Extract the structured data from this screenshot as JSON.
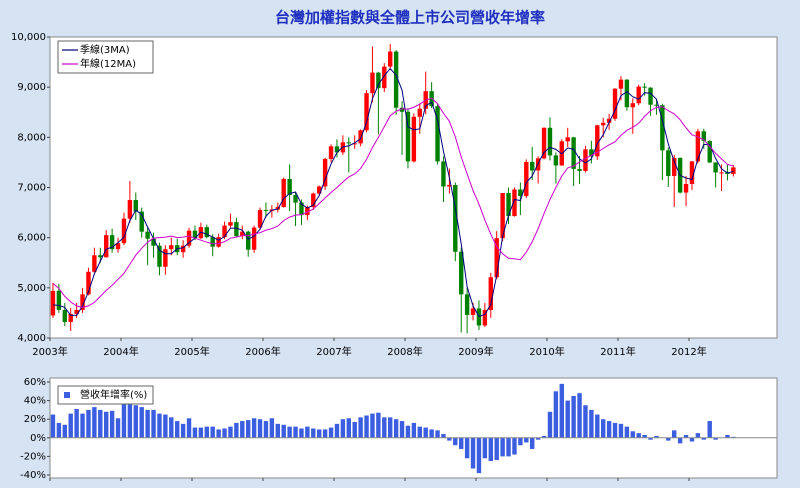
{
  "chart_data": [
    {
      "type": "candlestick",
      "title": "台灣加權指數與全體上市公司營收年增率",
      "categories": [
        "2003年",
        null,
        null,
        null,
        null,
        null,
        null,
        null,
        null,
        null,
        null,
        null,
        "2004年",
        null,
        null,
        null,
        null,
        null,
        null,
        null,
        null,
        null,
        null,
        null,
        "2005年",
        null,
        null,
        null,
        null,
        null,
        null,
        null,
        null,
        null,
        null,
        null,
        "2006年",
        null,
        null,
        null,
        null,
        null,
        null,
        null,
        null,
        null,
        null,
        null,
        "2007年",
        null,
        null,
        null,
        null,
        null,
        null,
        null,
        null,
        null,
        null,
        null,
        "2008年",
        null,
        null,
        null,
        null,
        null,
        null,
        null,
        null,
        null,
        null,
        null,
        "2009年",
        null,
        null,
        null,
        null,
        null,
        null,
        null,
        null,
        null,
        null,
        null,
        "2010年",
        null,
        null,
        null,
        null,
        null,
        null,
        null,
        null,
        null,
        null,
        null,
        "2011年",
        null,
        null,
        null,
        null,
        null,
        null,
        null,
        null,
        null,
        null,
        null,
        "2012年",
        null,
        null,
        null,
        null,
        null,
        null,
        null
      ],
      "open": [
        4450,
        4940,
        4560,
        4320,
        4480,
        4560,
        4870,
        5320,
        5650,
        5610,
        6050,
        5770,
        5890,
        6380,
        6750,
        6520,
        6120,
        5980,
        5840,
        5420,
        5770,
        5850,
        5710,
        5840,
        6140,
        5990,
        6210,
        6010,
        5820,
        6010,
        6240,
        6310,
        6030,
        6120,
        5760,
        6200,
        6550,
        6530,
        6560,
        6610,
        7170,
        6850,
        6700,
        6450,
        6610,
        6880,
        7020,
        7570,
        7820,
        7700,
        7900,
        7880,
        7880,
        8140,
        8880,
        9290,
        8980,
        9410,
        9710,
        8590,
        8510,
        7520,
        8410,
        8570,
        8920,
        8620,
        7520,
        7020,
        7050,
        5720,
        4870,
        4460,
        4590,
        4250,
        4560,
        5210,
        5990,
        6890,
        6430,
        6960,
        6830,
        7510,
        7340,
        7580,
        8190,
        7640,
        7440,
        7920,
        8000,
        7370,
        7330,
        7760,
        7620,
        8240,
        8290,
        8370,
        8970,
        9150,
        8600,
        8680,
        9010,
        8990,
        8650,
        8640,
        7740,
        7230,
        7590,
        6900,
        7070,
        7520,
        8120,
        7930,
        7500,
        7300,
        7300,
        7270
      ],
      "high": [
        5100,
        5080,
        4700,
        4600,
        4700,
        5000,
        5400,
        5800,
        5800,
        6150,
        6180,
        6000,
        6500,
        7130,
        6900,
        6600,
        6200,
        6100,
        5900,
        5850,
        6000,
        5980,
        5950,
        6200,
        6240,
        6300,
        6260,
        6070,
        6080,
        6320,
        6480,
        6400,
        6240,
        6140,
        6240,
        6600,
        6700,
        6650,
        6700,
        7200,
        7460,
        6900,
        6760,
        6640,
        6900,
        7040,
        7590,
        7860,
        7960,
        8040,
        8000,
        8040,
        8160,
        8940,
        9810,
        9300,
        9480,
        9860,
        9740,
        8720,
        8580,
        8480,
        8680,
        9310,
        9100,
        8670,
        7620,
        7380,
        7100,
        5800,
        5000,
        4700,
        4750,
        4700,
        5300,
        6130,
        6890,
        7000,
        7000,
        7100,
        7560,
        7810,
        7620,
        8200,
        8400,
        7700,
        7960,
        8190,
        8010,
        7630,
        7830,
        7930,
        8250,
        8390,
        8470,
        8980,
        9220,
        9160,
        8780,
        9050,
        9080,
        9000,
        8760,
        8670,
        7800,
        7650,
        7600,
        7230,
        7530,
        8170,
        8170,
        7940,
        7500,
        7460,
        7450,
        7450
      ],
      "low": [
        4400,
        4500,
        4240,
        4140,
        4400,
        4500,
        4850,
        5300,
        5500,
        5600,
        5700,
        5700,
        5850,
        6300,
        6350,
        6000,
        5450,
        5600,
        5250,
        5260,
        5650,
        5650,
        5600,
        5800,
        5950,
        5970,
        5990,
        5630,
        5800,
        5970,
        6200,
        6020,
        5970,
        5620,
        5700,
        6150,
        6400,
        6400,
        6500,
        6600,
        6530,
        6230,
        6250,
        6350,
        6550,
        6850,
        6950,
        7500,
        7600,
        7650,
        7300,
        7770,
        7820,
        8100,
        8700,
        8060,
        8900,
        9340,
        8450,
        7650,
        7380,
        7500,
        8070,
        8460,
        8580,
        7460,
        6710,
        6880,
        5530,
        4110,
        4090,
        4350,
        4160,
        4220,
        4400,
        5170,
        5930,
        6270,
        6420,
        6450,
        6790,
        7150,
        7080,
        7560,
        7540,
        7080,
        7430,
        7810,
        7030,
        7070,
        7300,
        7480,
        7550,
        8000,
        8150,
        8330,
        8740,
        8530,
        8070,
        8640,
        8830,
        8430,
        8450,
        7150,
        7010,
        6610,
        6880,
        6630,
        6950,
        7480,
        7770,
        7490,
        7000,
        6930,
        7140,
        7220
      ],
      "close": [
        4940,
        4560,
        4320,
        4480,
        4560,
        4870,
        5320,
        5650,
        5610,
        6050,
        5770,
        5890,
        6380,
        6750,
        6520,
        6120,
        5980,
        5840,
        5420,
        5770,
        5850,
        5710,
        5840,
        6140,
        5990,
        6210,
        6010,
        5820,
        6010,
        6240,
        6310,
        6030,
        6120,
        5760,
        6200,
        6550,
        6530,
        6560,
        6610,
        7170,
        6850,
        6700,
        6450,
        6610,
        6880,
        7020,
        7570,
        7820,
        7700,
        7900,
        7880,
        7880,
        8140,
        8880,
        9290,
        8980,
        9410,
        9710,
        8590,
        8510,
        7520,
        8410,
        8570,
        8920,
        8620,
        7520,
        7020,
        7050,
        5720,
        4870,
        4460,
        4590,
        4250,
        4560,
        5210,
        5990,
        6890,
        6430,
        6960,
        6830,
        7510,
        7340,
        7580,
        8190,
        7640,
        7440,
        7920,
        8000,
        7370,
        7330,
        7760,
        7620,
        8240,
        8290,
        8370,
        8970,
        9150,
        8600,
        8680,
        9010,
        8990,
        8650,
        8640,
        7740,
        7230,
        7590,
        6900,
        7070,
        7520,
        8120,
        7930,
        7500,
        7300,
        7300,
        7270,
        7400
      ],
      "up_color": "#ff0000",
      "down_color": "#008000",
      "series": [
        {
          "name": "季線(3MA)",
          "color": "#000080",
          "values": [
            4660,
            4650,
            4610,
            4450,
            4450,
            4640,
            4920,
            5280,
            5530,
            5770,
            5810,
            5900,
            6010,
            6340,
            6550,
            6460,
            6210,
            5980,
            5750,
            5680,
            5680,
            5780,
            5800,
            5900,
            5990,
            6110,
            6070,
            6010,
            5950,
            6020,
            6190,
            6190,
            6150,
            5970,
            6030,
            6170,
            6430,
            6550,
            6570,
            6780,
            6880,
            6910,
            6670,
            6590,
            6650,
            6840,
            7160,
            7470,
            7700,
            7810,
            7830,
            7890,
            7970,
            8300,
            8770,
            9050,
            9230,
            9370,
            9240,
            8940,
            8210,
            8150,
            8170,
            8630,
            8700,
            8350,
            7720,
            7200,
            6600,
            5880,
            5020,
            4640,
            4430,
            4470,
            4670,
            5250,
            6030,
            6440,
            6760,
            6740,
            7100,
            7230,
            7480,
            7700,
            7800,
            7760,
            7670,
            7790,
            7760,
            7570,
            7490,
            7570,
            7870,
            8050,
            8300,
            8540,
            8830,
            8910,
            8810,
            8760,
            8890,
            8880,
            8760,
            8340,
            7870,
            7520,
            7240,
            7190,
            7160,
            7570,
            7860,
            7850,
            7580,
            7370,
            7290,
            7320
          ]
        },
        {
          "name": "年線(12MA)",
          "color": "#cc00cc",
          "values": [
            5090,
            4990,
            4830,
            4720,
            4640,
            4610,
            4640,
            4710,
            4830,
            4950,
            5050,
            5170,
            5290,
            5470,
            5650,
            5790,
            5910,
            5990,
            6000,
            6010,
            6030,
            6000,
            6010,
            6030,
            5990,
            5950,
            5910,
            5880,
            5880,
            5920,
            5990,
            6010,
            6040,
            6040,
            6070,
            6100,
            6150,
            6180,
            6230,
            6340,
            6410,
            6450,
            6460,
            6510,
            6570,
            6680,
            6790,
            6900,
            7000,
            7110,
            7210,
            7270,
            7380,
            7560,
            7800,
            8000,
            8210,
            8430,
            8520,
            8570,
            8560,
            8600,
            8660,
            8740,
            8780,
            8670,
            8480,
            8320,
            8010,
            7610,
            7270,
            6940,
            6670,
            6350,
            6070,
            5820,
            5680,
            5590,
            5580,
            5560,
            5710,
            5920,
            6180,
            6480,
            6760,
            7000,
            7230,
            7390,
            7430,
            7510,
            7580,
            7640,
            7700,
            7780,
            7850,
            7910,
            8040,
            8140,
            8200,
            8280,
            8420,
            8530,
            8600,
            8610,
            8530,
            8470,
            8350,
            8190,
            8050,
            8010,
            7950,
            7820,
            7680,
            7570,
            7460,
            7430
          ]
        }
      ],
      "ylim": [
        4000,
        10000
      ],
      "yticks": [
        {
          "value": 4000,
          "label": "4,000"
        },
        {
          "value": 5000,
          "label": "5,000"
        },
        {
          "value": 6000,
          "label": "6,000"
        },
        {
          "value": 7000,
          "label": "7,000"
        },
        {
          "value": 8000,
          "label": "8,000"
        },
        {
          "value": 9000,
          "label": "9,000"
        },
        {
          "value": 10000,
          "label": "10,000"
        }
      ],
      "legend": "upper left"
    },
    {
      "type": "bar",
      "series": [
        {
          "name": "營收年增率(%)",
          "color": "#3b5ee0",
          "values": [
            25,
            16,
            14,
            26,
            31,
            26,
            30,
            33,
            30,
            28,
            29,
            21,
            40,
            36,
            35,
            33,
            30,
            30,
            26,
            25,
            22,
            18,
            15,
            21,
            11,
            11,
            12,
            12,
            9,
            10,
            12,
            16,
            18,
            19,
            21,
            20,
            18,
            21,
            15,
            14,
            12,
            12,
            10,
            12,
            10,
            9,
            9,
            11,
            15,
            20,
            21,
            17,
            22,
            24,
            26,
            27,
            22,
            22,
            20,
            18,
            13,
            16,
            12,
            11,
            9,
            8,
            4,
            -3,
            -8,
            -12,
            -22,
            -33,
            -38,
            -22,
            -25,
            -24,
            -20,
            -20,
            -18,
            -8,
            -5,
            -12,
            -2,
            2,
            28,
            50,
            58,
            40,
            45,
            48,
            35,
            30,
            25,
            20,
            18,
            16,
            15,
            12,
            7,
            5,
            3,
            -2,
            2,
            0,
            -3,
            8,
            -6,
            3,
            -4,
            5,
            -2,
            18,
            -2,
            0,
            3,
            1
          ]
        }
      ],
      "ylim": [
        -40,
        60
      ],
      "yticks": [
        {
          "value": -40,
          "label": "-40%"
        },
        {
          "value": -20,
          "label": "-20%"
        },
        {
          "value": 0,
          "label": "0%"
        },
        {
          "value": 20,
          "label": "20%"
        },
        {
          "value": 40,
          "label": "40%"
        },
        {
          "value": 60,
          "label": "60%"
        }
      ],
      "legend": "upper left"
    }
  ]
}
